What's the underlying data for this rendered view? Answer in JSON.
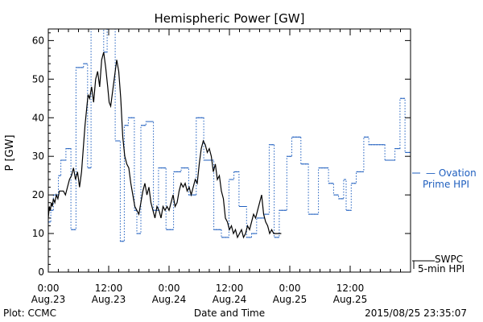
{
  "chart_data": {
    "type": "line",
    "title": "Hemispheric Power [GW]",
    "ylabel": "P [GW]",
    "xlabel": "Date and Time",
    "ylim": [
      0,
      63
    ],
    "xlim_hours": [
      0,
      72
    ],
    "yticks": [
      0,
      10,
      20,
      30,
      40,
      50,
      60
    ],
    "xticks": [
      {
        "h": 0,
        "time": "0:00",
        "date": "Aug.23"
      },
      {
        "h": 12,
        "time": "12:00",
        "date": "Aug.23"
      },
      {
        "h": 24,
        "time": "0:00",
        "date": "Aug.24"
      },
      {
        "h": 36,
        "time": "12:00",
        "date": "Aug.24"
      },
      {
        "h": 48,
        "time": "0:00",
        "date": "Aug.25"
      },
      {
        "h": 60,
        "time": "12:00",
        "date": "Aug.25"
      }
    ],
    "footer_left": "Plot: CCMC",
    "footer_right": "2015/08/25 23:35:07",
    "series": [
      {
        "name": "Ovation Prime HPI",
        "legend_lines": [
          "— Ovation",
          "Prime HPI"
        ],
        "color": "#1f5fbf",
        "style": "step-dotted",
        "x": [
          0,
          0.5,
          1,
          2,
          2.5,
          3.5,
          4.5,
          5.5,
          6.2,
          7,
          7.8,
          8.5,
          9.5,
          10.2,
          11,
          11.7,
          12.2,
          13.3,
          14.3,
          15.1,
          15.9,
          17.1,
          17.6,
          18.4,
          19.4,
          20.9,
          21.9,
          23.4,
          24.9,
          26.4,
          27.9,
          29.4,
          30.9,
          32.9,
          34.4,
          35.9,
          36.9,
          37.9,
          39.4,
          40.4,
          41.4,
          42.9,
          43.9,
          44.9,
          45.9,
          47.4,
          48.4,
          50.2,
          51.7,
          53.7,
          55.7,
          56.7,
          57.7,
          58.7,
          59.2,
          60.2,
          61.2,
          62.7,
          63.7,
          64.9,
          66.9,
          68.9,
          69.9,
          70.9,
          72
        ],
        "y": [
          13,
          16,
          20,
          25,
          29,
          32,
          11,
          53,
          53,
          54,
          27,
          63,
          63,
          63,
          57,
          63,
          63,
          34,
          8,
          38,
          40,
          16,
          10,
          38,
          39,
          16,
          27,
          11,
          26,
          27,
          20,
          40,
          29,
          11,
          9,
          24,
          26,
          17,
          9,
          10,
          14,
          15,
          33,
          9,
          16,
          30,
          35,
          28,
          15,
          27,
          23,
          20,
          19,
          24,
          16,
          23,
          26,
          35,
          33,
          33,
          29,
          32,
          45,
          31,
          31
        ]
      },
      {
        "name": "SWPC 5-min HPI",
        "legend_lines": [
          "SWPC",
          "5-min HPI"
        ],
        "color": "#000000",
        "style": "solid",
        "x": [
          0,
          0.2,
          0.4,
          0.6,
          0.8,
          1.0,
          1.3,
          1.6,
          1.9,
          2.2,
          2.6,
          3.0,
          3.4,
          3.8,
          4.2,
          4.6,
          5.0,
          5.4,
          5.8,
          6.2,
          6.6,
          7.0,
          7.3,
          7.6,
          7.9,
          8.2,
          8.6,
          9.0,
          9.4,
          9.8,
          10.2,
          10.6,
          11.0,
          11.4,
          11.8,
          12.1,
          12.4,
          12.8,
          13.2,
          13.6,
          14.0,
          14.4,
          14.8,
          15.2,
          15.6,
          16.0,
          16.4,
          16.8,
          17.2,
          17.6,
          18.0,
          18.4,
          18.8,
          19.2,
          19.6,
          20.0,
          20.4,
          20.8,
          21.2,
          21.6,
          22.0,
          22.4,
          22.8,
          23.2,
          23.6,
          24.0,
          24.4,
          24.8,
          25.2,
          25.6,
          26.0,
          26.4,
          26.8,
          27.2,
          27.6,
          28.0,
          28.4,
          28.8,
          29.2,
          29.6,
          30.0,
          30.4,
          30.8,
          31.2,
          31.6,
          32.0,
          32.4,
          32.8,
          33.2,
          33.6,
          34.0,
          34.4,
          34.8,
          35.2,
          35.6,
          36.0,
          36.4,
          36.8,
          37.2,
          37.6,
          38.0,
          38.4,
          38.8,
          39.2,
          39.6,
          40.0,
          40.4,
          40.8,
          41.2,
          41.6,
          42.0,
          42.4,
          42.8,
          43.2,
          43.6,
          44.0,
          44.4,
          44.8,
          45.2,
          45.6,
          46.0,
          46.3
        ],
        "y": [
          14,
          17,
          16,
          18,
          17,
          19,
          18,
          20,
          19,
          21,
          21,
          21,
          20,
          22,
          24,
          25,
          27,
          24,
          26,
          22,
          26,
          33,
          38,
          42,
          46,
          45,
          48,
          44,
          50,
          52,
          48,
          55,
          57,
          53,
          48,
          44,
          43,
          47,
          51,
          55,
          52,
          45,
          35,
          30,
          28,
          27,
          23,
          20,
          17,
          16,
          15,
          18,
          21,
          23,
          20,
          22,
          18,
          16,
          14,
          17,
          16,
          14,
          17,
          16,
          17,
          16,
          18,
          20,
          17,
          18,
          21,
          23,
          22,
          23,
          21,
          22,
          20,
          22,
          24,
          23,
          28,
          32,
          34,
          33,
          31,
          32,
          30,
          26,
          28,
          24,
          25,
          21,
          19,
          14,
          13,
          11,
          12,
          10,
          11,
          9,
          10,
          11,
          9,
          10,
          12,
          11,
          13,
          15,
          14,
          16,
          18,
          20,
          15,
          13,
          12,
          10,
          11,
          10,
          10,
          10,
          10,
          10
        ]
      }
    ]
  }
}
